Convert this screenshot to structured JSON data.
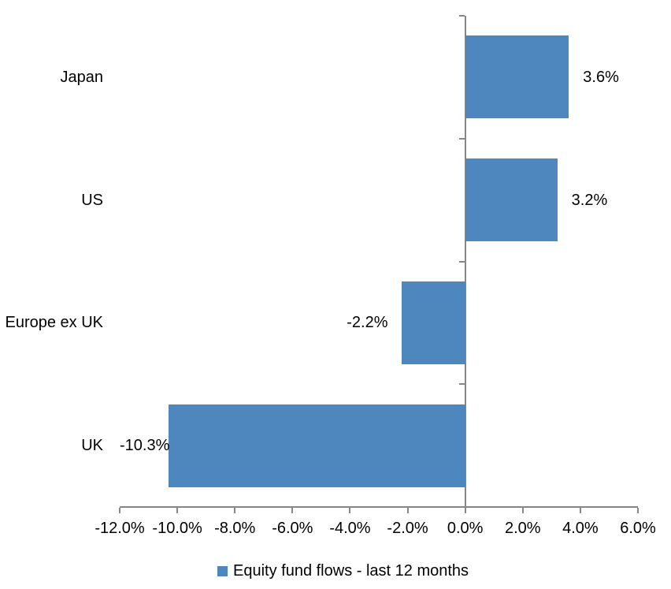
{
  "chart_data": {
    "type": "bar",
    "orientation": "horizontal",
    "title": "",
    "xlabel": "",
    "ylabel": "",
    "categories": [
      "Japan",
      "US",
      "Europe ex UK",
      "UK"
    ],
    "series": [
      {
        "name": "Equity fund flows - last 12 months",
        "values": [
          3.6,
          3.2,
          -2.2,
          -10.3
        ],
        "value_labels": [
          "3.6%",
          "3.2%",
          "-2.2%",
          "-10.3%"
        ]
      }
    ],
    "xlim": [
      -12,
      6
    ],
    "x_ticks": [
      -12,
      -10,
      -8,
      -6,
      -4,
      -2,
      0,
      2,
      4,
      6
    ],
    "x_tick_labels": [
      "-12.0%",
      "-10.0%",
      "-8.0%",
      "-6.0%",
      "-4.0%",
      "-2.0%",
      "0.0%",
      "2.0%",
      "4.0%",
      "6.0%"
    ],
    "grid": false,
    "legend_position": "bottom-center",
    "colors": {
      "bar": "#4E87BE",
      "axis": "#868686",
      "text": "#000000",
      "background": "#FFFFFF"
    }
  }
}
